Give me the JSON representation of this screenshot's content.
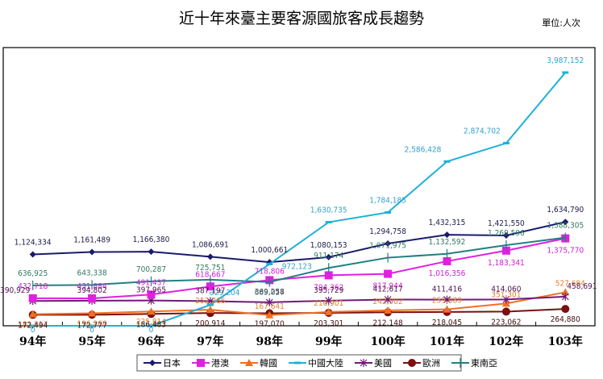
{
  "title": "近十年來臺主要客源國旅客成長趨勢",
  "unit": "單位:人次",
  "chart_data": {
    "type": "line",
    "title": "近十年來臺主要客源國旅客成長趨勢",
    "unit_label": "單位:人次",
    "xlabel": "",
    "ylabel": "",
    "categories": [
      "94年",
      "95年",
      "96年",
      "97年",
      "98年",
      "99年",
      "100年",
      "101年",
      "102年",
      "103年"
    ],
    "ylim": [
      0,
      4380000
    ],
    "grid": false,
    "legend_position": "bottom",
    "series": [
      {
        "name": "日本",
        "color": "#1a1a6e",
        "marker": "diamond",
        "values": [
          1124334,
          1161489,
          1166380,
          1086691,
          1000661,
          1080153,
          1294758,
          1432315,
          1421550,
          1634790
        ],
        "labels": [
          "1,124,334",
          "1,161,489",
          "1,166,380",
          "1,086,691",
          "1,000,661",
          "1,080,153",
          "1,294,758",
          "1,432,315",
          "1,421,550",
          "1,634,790"
        ]
      },
      {
        "name": "港澳",
        "color": "#e020e0",
        "marker": "square",
        "values": [
          432718,
          431884,
          491437,
          618667,
          718806,
          794362,
          817944,
          1016356,
          1183341,
          1375770
        ],
        "labels": [
          "432,718",
          "431,884",
          "491,437",
          "618,667",
          "718,806",
          "794,362",
          "817,944",
          "1,016,356",
          "1,183,341",
          "1,375,770"
        ]
      },
      {
        "name": "韓國",
        "color": "#f07020",
        "marker": "triangle",
        "values": [
          182517,
          196260,
          225814,
          252266,
          167641,
          216901,
          242902,
          259089,
          351301,
          527684
        ],
        "labels": [
          "182,517",
          "196,260",
          "225,814",
          "252,266",
          "167,641",
          "216,901",
          "242,902",
          "259,089",
          "351,301",
          "527,684"
        ]
      },
      {
        "name": "中國大陸",
        "color": "#20b0d8",
        "marker": "dash",
        "values": [
          0,
          0,
          0,
          329204,
          972123,
          1630735,
          1784185,
          2586428,
          2874702,
          3987152
        ],
        "labels": [
          "0",
          "0",
          "0",
          "329,204",
          "972,123",
          "1,630,735",
          "1,784,185",
          "2,586,428",
          "2,874,702",
          "3,987,152"
        ]
      },
      {
        "name": "美國",
        "color": "#701a78",
        "marker": "star",
        "values": [
          390929,
          394802,
          397965,
          387197,
          369258,
          395729,
          412617,
          411416,
          414060,
          458691
        ],
        "labels": [
          "390,929",
          "394,802",
          "397,965",
          "387,197",
          "369,258",
          "395,729",
          "412,617",
          "411,416",
          "414,060",
          "458,691"
        ]
      },
      {
        "name": "歐洲",
        "color": "#7a1010",
        "marker": "circle",
        "values": [
          172494,
          172777,
          186483,
          200914,
          197070,
          203301,
          212148,
          218045,
          223062,
          264880
        ],
        "labels": [
          "172,494",
          "172,777",
          "186,483",
          "200,914",
          "197,070",
          "203,301",
          "212,148",
          "218,045",
          "223,062",
          "264,880"
        ]
      },
      {
        "name": "東南亞",
        "color": "#208080",
        "marker": "plus",
        "values": [
          636925,
          643338,
          700287,
          725751,
          689027,
          911174,
          1071975,
          1132592,
          1269596,
          1388305
        ],
        "labels": [
          "636,925",
          "643,338",
          "700,287",
          "725,751",
          "689,027",
          "911,174",
          "1,071,975",
          "1,132,592",
          "1,269,596",
          "1,388,305"
        ]
      }
    ]
  }
}
